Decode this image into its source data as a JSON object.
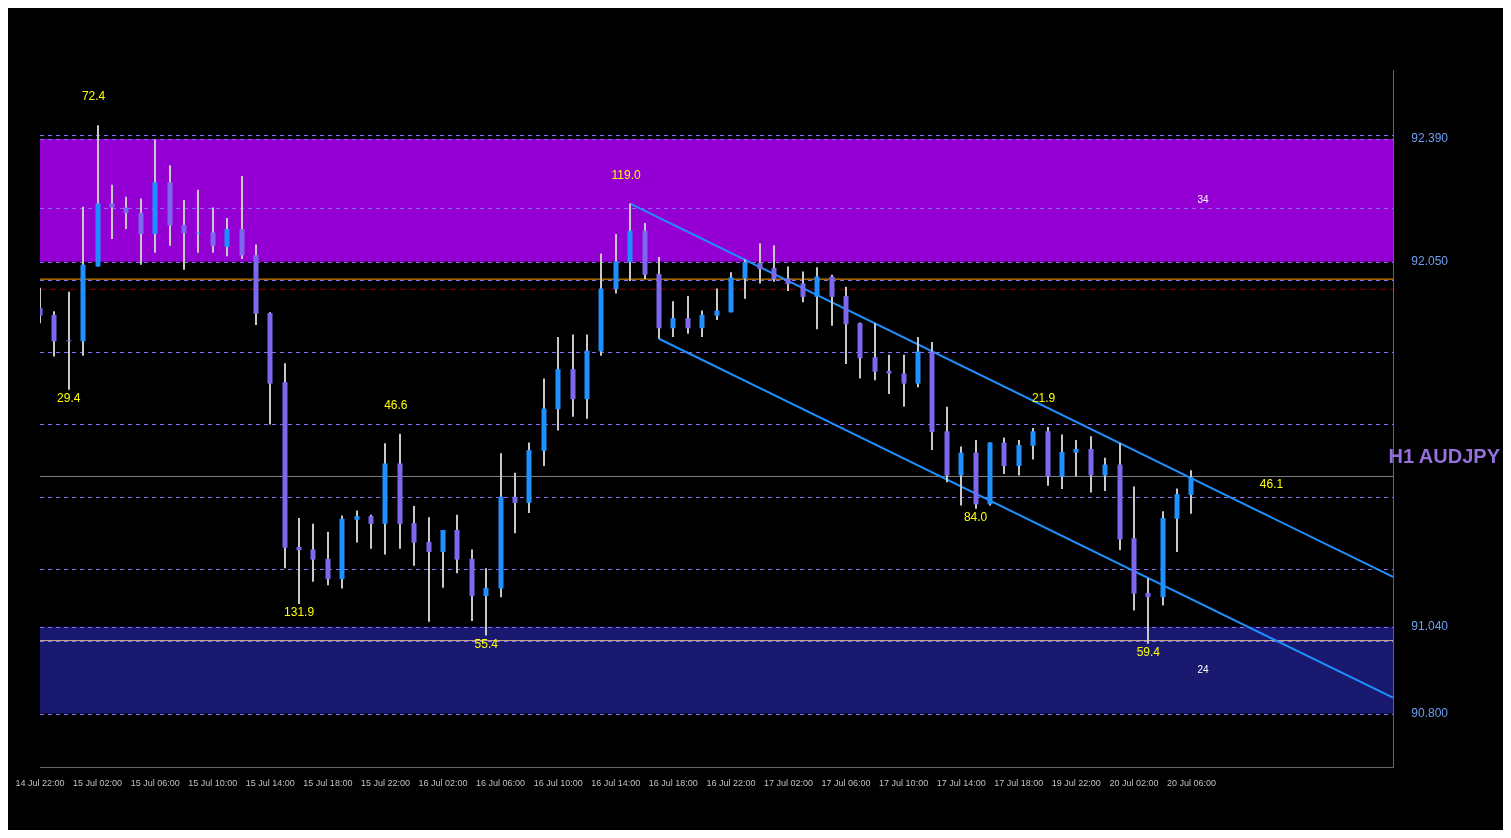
{
  "chart_data": {
    "type": "candlestick",
    "title": "H1 AUDJPY",
    "categories": [
      "14 Jul 22:00",
      null,
      null,
      null,
      "15 Jul 02:00",
      null,
      null,
      null,
      "15 Jul 06:00",
      null,
      null,
      null,
      "15 Jul 10:00",
      null,
      null,
      null,
      "15 Jul 14:00",
      null,
      null,
      null,
      "15 Jul 18:00",
      null,
      null,
      null,
      "15 Jul 22:00",
      null,
      null,
      null,
      "16 Jul 02:00",
      null,
      null,
      null,
      "16 Jul 06:00",
      null,
      null,
      null,
      "16 Jul 10:00",
      null,
      null,
      null,
      "16 Jul 14:00",
      null,
      null,
      null,
      "16 Jul 18:00",
      null,
      null,
      null,
      "16 Jul 22:00",
      null,
      null,
      null,
      "17 Jul 02:00",
      null,
      null,
      null,
      "17 Jul 06:00",
      null,
      null,
      null,
      "17 Jul 10:00",
      null,
      null,
      null,
      "17 Jul 14:00",
      null,
      null,
      null,
      "17 Jul 18:00",
      null,
      null,
      null,
      "19 Jul 22:00",
      null,
      null,
      null,
      "20 Jul 02:00",
      null,
      null,
      null,
      "20 Jul 06:00",
      null,
      null,
      null,
      null,
      null,
      null,
      null,
      null,
      null,
      null,
      null,
      null,
      null,
      null
    ],
    "ohlc": [
      [
        91.922,
        91.978,
        91.88,
        91.901
      ],
      [
        91.903,
        91.913,
        91.788,
        91.83
      ],
      [
        91.833,
        91.967,
        91.696,
        91.833
      ],
      [
        91.83,
        92.202,
        91.79,
        92.042
      ],
      [
        92.037,
        92.428,
        92.037,
        92.211
      ],
      [
        92.211,
        92.263,
        92.113,
        92.2
      ],
      [
        92.2,
        92.23,
        92.141,
        92.185
      ],
      [
        92.185,
        92.225,
        92.042,
        92.127
      ],
      [
        92.127,
        92.388,
        92.075,
        92.27
      ],
      [
        92.27,
        92.317,
        92.094,
        92.15
      ],
      [
        92.152,
        92.221,
        92.028,
        92.129
      ],
      [
        92.129,
        92.249,
        92.075,
        92.131
      ],
      [
        92.131,
        92.2,
        92.075,
        92.094
      ],
      [
        92.091,
        92.171,
        92.065,
        92.141
      ],
      [
        92.141,
        92.287,
        92.058,
        92.068
      ],
      [
        92.068,
        92.098,
        91.875,
        91.906
      ],
      [
        91.908,
        91.91,
        91.6,
        91.713
      ],
      [
        91.717,
        91.769,
        91.202,
        91.259
      ],
      [
        91.261,
        91.341,
        91.103,
        91.252
      ],
      [
        91.254,
        91.325,
        91.165,
        91.226
      ],
      [
        91.228,
        91.303,
        91.155,
        91.172
      ],
      [
        91.172,
        91.348,
        91.146,
        91.339
      ],
      [
        91.336,
        91.362,
        91.273,
        91.346
      ],
      [
        91.346,
        91.35,
        91.256,
        91.325
      ],
      [
        91.325,
        91.548,
        91.24,
        91.492
      ],
      [
        91.492,
        91.574,
        91.256,
        91.325
      ],
      [
        91.327,
        91.374,
        91.209,
        91.273
      ],
      [
        91.275,
        91.343,
        91.054,
        91.247
      ],
      [
        91.247,
        91.308,
        91.148,
        91.308
      ],
      [
        91.308,
        91.35,
        91.188,
        91.226
      ],
      [
        91.228,
        91.254,
        91.056,
        91.125
      ],
      [
        91.125,
        91.202,
        91.016,
        91.148
      ],
      [
        91.146,
        91.52,
        91.122,
        91.4
      ],
      [
        91.4,
        91.466,
        91.299,
        91.383
      ],
      [
        91.383,
        91.55,
        91.355,
        91.529
      ],
      [
        91.527,
        91.727,
        91.485,
        91.644
      ],
      [
        91.642,
        91.842,
        91.583,
        91.753
      ],
      [
        91.753,
        91.849,
        91.621,
        91.67
      ],
      [
        91.67,
        91.849,
        91.616,
        91.804
      ],
      [
        91.802,
        92.073,
        91.79,
        91.976
      ],
      [
        91.974,
        92.127,
        91.962,
        92.051
      ],
      [
        92.049,
        92.211,
        91.997,
        92.136
      ],
      [
        92.136,
        92.157,
        92.002,
        92.014
      ],
      [
        92.016,
        92.063,
        91.837,
        91.866
      ],
      [
        91.866,
        91.941,
        91.842,
        91.894
      ],
      [
        91.894,
        91.955,
        91.851,
        91.866
      ],
      [
        91.866,
        91.915,
        91.842,
        91.903
      ],
      [
        91.901,
        91.976,
        91.889,
        91.915
      ],
      [
        91.91,
        92.021,
        91.91,
        92.007
      ],
      [
        92.004,
        92.056,
        91.948,
        92.049
      ],
      [
        92.047,
        92.101,
        91.99,
        92.03
      ],
      [
        92.033,
        92.096,
        91.995,
        92.002
      ],
      [
        92.004,
        92.037,
        91.969,
        91.988
      ],
      [
        91.99,
        92.023,
        91.938,
        91.953
      ],
      [
        91.953,
        92.035,
        91.863,
        92.009
      ],
      [
        92.009,
        92.014,
        91.873,
        91.953
      ],
      [
        91.955,
        91.981,
        91.767,
        91.877
      ],
      [
        91.88,
        91.882,
        91.727,
        91.783
      ],
      [
        91.786,
        91.88,
        91.722,
        91.746
      ],
      [
        91.748,
        91.793,
        91.684,
        91.741
      ],
      [
        91.741,
        91.793,
        91.649,
        91.713
      ],
      [
        91.713,
        91.842,
        91.703,
        91.802
      ],
      [
        91.802,
        91.828,
        91.529,
        91.579
      ],
      [
        91.581,
        91.649,
        91.44,
        91.459
      ],
      [
        91.459,
        91.539,
        91.376,
        91.522
      ],
      [
        91.522,
        91.557,
        91.367,
        91.379
      ],
      [
        91.379,
        91.55,
        91.376,
        91.55
      ],
      [
        91.55,
        91.564,
        91.463,
        91.485
      ],
      [
        91.485,
        91.557,
        91.459,
        91.543
      ],
      [
        91.541,
        91.59,
        91.503,
        91.581
      ],
      [
        91.581,
        91.593,
        91.43,
        91.456
      ],
      [
        91.456,
        91.572,
        91.421,
        91.524
      ],
      [
        91.522,
        91.557,
        91.456,
        91.532
      ],
      [
        91.532,
        91.567,
        91.412,
        91.459
      ],
      [
        91.459,
        91.508,
        91.416,
        91.489
      ],
      [
        91.489,
        91.548,
        91.252,
        91.282
      ],
      [
        91.285,
        91.428,
        91.085,
        91.132
      ],
      [
        91.134,
        91.174,
        90.993,
        91.122
      ],
      [
        91.122,
        91.36,
        91.099,
        91.341
      ],
      [
        91.339,
        91.423,
        91.247,
        91.407
      ],
      [
        91.405,
        91.473,
        91.353,
        91.454
      ],
      null,
      null,
      null,
      null,
      null,
      null,
      null,
      null,
      null,
      null,
      null,
      null,
      null,
      null
    ],
    "value_labels": [
      null,
      null,
      "29.4",
      null,
      "72.4",
      null,
      null,
      null,
      null,
      null,
      null,
      null,
      null,
      null,
      null,
      null,
      null,
      null,
      "131.9",
      null,
      null,
      null,
      null,
      null,
      null,
      "46.6",
      null,
      null,
      null,
      null,
      null,
      "55.4",
      null,
      null,
      null,
      null,
      null,
      null,
      null,
      null,
      null,
      "119.0",
      null,
      null,
      null,
      null,
      null,
      null,
      null,
      null,
      null,
      null,
      null,
      null,
      null,
      null,
      null,
      null,
      null,
      null,
      null,
      null,
      null,
      null,
      null,
      "84.0",
      null,
      null,
      null,
      null,
      "21.9",
      null,
      null,
      null,
      null,
      null,
      null,
      "59.4",
      null,
      null,
      null,
      null,
      null,
      null,
      null,
      null,
      null,
      null,
      null,
      null,
      null,
      null,
      null,
      null,
      null
    ],
    "colors": [
      "#7b68ee",
      "#7b68ee",
      "#7b68ee",
      "#1e90ff",
      "#1e90ff",
      "#7b68ee",
      "#7b68ee",
      "#7b68ee",
      "#1e90ff",
      "#7b68ee",
      "#7b68ee",
      "#1e90ff",
      "#7b68ee",
      "#1e90ff",
      "#7b68ee",
      "#7b68ee",
      "#7b68ee",
      "#7b68ee",
      "#7b68ee",
      "#7b68ee",
      "#7b68ee",
      "#1e90ff",
      "#1e90ff",
      "#7b68ee",
      "#1e90ff",
      "#7b68ee",
      "#7b68ee",
      "#7b68ee",
      "#1e90ff",
      "#7b68ee",
      "#7b68ee",
      "#1e90ff",
      "#1e90ff",
      "#7b68ee",
      "#1e90ff",
      "#1e90ff",
      "#1e90ff",
      "#7b68ee",
      "#1e90ff",
      "#1e90ff",
      "#1e90ff",
      "#1e90ff",
      "#7b68ee",
      "#7b68ee",
      "#1e90ff",
      "#7b68ee",
      "#1e90ff",
      "#1e90ff",
      "#1e90ff",
      "#1e90ff",
      "#7b68ee",
      "#7b68ee",
      "#7b68ee",
      "#7b68ee",
      "#1e90ff",
      "#7b68ee",
      "#7b68ee",
      "#7b68ee",
      "#7b68ee",
      "#7b68ee",
      "#7b68ee",
      "#1e90ff",
      "#7b68ee",
      "#7b68ee",
      "#1e90ff",
      "#7b68ee",
      "#1e90ff",
      "#7b68ee",
      "#1e90ff",
      "#1e90ff",
      "#7b68ee",
      "#1e90ff",
      "#1e90ff",
      "#7b68ee",
      "#1e90ff",
      "#7b68ee",
      "#7b68ee",
      "#7b68ee",
      "#1e90ff",
      "#1e90ff",
      "#1e90ff",
      null,
      null,
      null,
      null,
      null,
      null,
      null,
      null,
      null,
      null,
      null,
      null,
      null,
      null
    ],
    "series": [
      {
        "type": "line",
        "color": "#1e90ff",
        "values": [
          null,
          null,
          null,
          null,
          null,
          null,
          null,
          null,
          null,
          null,
          null,
          null,
          null,
          null,
          null,
          null,
          null,
          null,
          null,
          null,
          null,
          null,
          null,
          null,
          null,
          null,
          null,
          null,
          null,
          null,
          null,
          null,
          null,
          null,
          null,
          null,
          null,
          null,
          null,
          null,
          null,
          92.211,
          null,
          null,
          null,
          null,
          null,
          null,
          null,
          null,
          null,
          null,
          null,
          null,
          null,
          null,
          null,
          null,
          null,
          null,
          null,
          null,
          null,
          null,
          null,
          null,
          null,
          null,
          null,
          null,
          null,
          null,
          null,
          null,
          null,
          null,
          null,
          null,
          null,
          null,
          null,
          null,
          null,
          null,
          null,
          null,
          null,
          null,
          null,
          null,
          null,
          null,
          null,
          null,
          91.178
        ]
      },
      {
        "type": "line",
        "color": "#1e90ff",
        "values": [
          null,
          null,
          null,
          null,
          null,
          null,
          null,
          null,
          null,
          null,
          null,
          null,
          null,
          null,
          null,
          null,
          null,
          null,
          null,
          null,
          null,
          null,
          null,
          null,
          null,
          null,
          null,
          null,
          null,
          null,
          null,
          null,
          null,
          null,
          null,
          null,
          null,
          null,
          null,
          null,
          null,
          null,
          null,
          91.837,
          null,
          null,
          null,
          null,
          null,
          null,
          null,
          null,
          null,
          null,
          null,
          null,
          null,
          null,
          null,
          null,
          null,
          null,
          null,
          null,
          null,
          null,
          null,
          null,
          null,
          null,
          null,
          null,
          null,
          null,
          null,
          null,
          null,
          null,
          null,
          null,
          null,
          null,
          null,
          null,
          null,
          null,
          null,
          null,
          null,
          null,
          null,
          null,
          null,
          null,
          90.844
        ]
      }
    ],
    "ylim": [
      90.65,
      92.58
    ],
    "yticks": [
      {
        "value": 90.8,
        "label": "90.800"
      },
      {
        "value": 91.0,
        "label": null
      },
      {
        "value": 91.04,
        "label": "91.040"
      },
      {
        "value": 91.2,
        "label": null
      },
      {
        "value": 91.4,
        "label": null
      },
      {
        "value": 91.6,
        "label": null
      },
      {
        "value": 91.8,
        "label": null
      },
      {
        "value": 92.0,
        "label": null
      },
      {
        "value": 92.05,
        "label": "92.050"
      },
      {
        "value": 92.2,
        "label": null
      },
      {
        "value": 92.39,
        "label": "92.390"
      },
      {
        "value": 92.4,
        "label": null
      }
    ],
    "grid": "y",
    "bands": [
      {
        "axis": "y",
        "from": 92.05,
        "to": 92.39,
        "label": "34",
        "color": "#9400d3"
      },
      {
        "axis": "y",
        "from": 90.8,
        "to": 91.04,
        "label": "24",
        "color": "#191970"
      }
    ],
    "ref_lines": [
      {
        "axis": "y",
        "value": 92.002,
        "color": "#ffa500"
      },
      {
        "axis": "y",
        "value": 91.974,
        "color": "#8b0000",
        "line_style": "dashed"
      },
      {
        "axis": "y",
        "value": 91.456,
        "color": "#808080"
      },
      {
        "axis": "y",
        "value": 91.002,
        "color": "#d2b48c"
      }
    ],
    "annotations": [
      "46.1"
    ]
  }
}
